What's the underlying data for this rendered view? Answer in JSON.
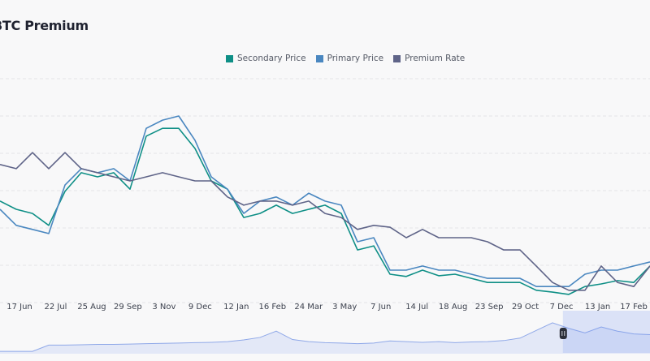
{
  "chart_data": {
    "type": "line",
    "title": "BTC Premium",
    "xlabel": "",
    "ylabel": "",
    "x_ticks": [
      "17 Jun",
      "22 Jul",
      "25 Aug",
      "29 Sep",
      "3 Nov",
      "9 Dec",
      "12 Jan",
      "16 Feb",
      "24 Mar",
      "3 May",
      "7 Jun",
      "14 Jul",
      "18 Aug",
      "23 Sep",
      "29 Oct",
      "7 Dec",
      "13 Jan",
      "17 Feb"
    ],
    "grid": true,
    "legend_position": "top",
    "ylim": [
      0,
      6
    ],
    "series": [
      {
        "name": "Secondary Price",
        "color": "#0e8f86",
        "values": [
          2.72,
          2.5,
          2.39,
          2.07,
          2.98,
          3.48,
          3.37,
          3.48,
          3.04,
          4.46,
          4.67,
          4.67,
          4.13,
          3.26,
          3.04,
          2.28,
          2.39,
          2.61,
          2.39,
          2.5,
          2.61,
          2.39,
          1.41,
          1.52,
          0.76,
          0.7,
          0.87,
          0.72,
          0.76,
          0.65,
          0.54,
          0.54,
          0.54,
          0.33,
          0.28,
          0.22,
          0.43,
          0.5,
          0.59,
          0.54,
          0.98
        ]
      },
      {
        "name": "Primary Price",
        "color": "#4a87c0",
        "values": [
          2.5,
          2.07,
          1.96,
          1.85,
          3.15,
          3.59,
          3.48,
          3.59,
          3.26,
          4.67,
          4.89,
          5.0,
          4.35,
          3.37,
          3.04,
          2.39,
          2.72,
          2.83,
          2.61,
          2.93,
          2.72,
          2.61,
          1.63,
          1.74,
          0.87,
          0.87,
          0.98,
          0.87,
          0.87,
          0.76,
          0.65,
          0.65,
          0.65,
          0.43,
          0.43,
          0.43,
          0.76,
          0.87,
          0.87,
          0.98,
          1.09
        ]
      },
      {
        "name": "Premium Rate",
        "color": "#5f6488",
        "values": [
          3.7,
          3.59,
          4.02,
          3.59,
          4.02,
          3.59,
          3.48,
          3.37,
          3.26,
          3.37,
          3.48,
          3.37,
          3.26,
          3.26,
          2.83,
          2.61,
          2.72,
          2.72,
          2.61,
          2.72,
          2.39,
          2.28,
          1.96,
          2.07,
          2.02,
          1.74,
          1.96,
          1.74,
          1.74,
          1.74,
          1.63,
          1.41,
          1.41,
          0.98,
          0.54,
          0.33,
          0.33,
          0.98,
          0.54,
          0.43,
          0.98
        ]
      }
    ],
    "navigator": {
      "color": "#8fa8e8",
      "values": [
        0.02,
        0.02,
        0.02,
        0.2,
        0.2,
        0.21,
        0.22,
        0.22,
        0.23,
        0.24,
        0.25,
        0.26,
        0.27,
        0.28,
        0.3,
        0.35,
        0.42,
        0.6,
        0.36,
        0.3,
        0.27,
        0.26,
        0.24,
        0.26,
        0.32,
        0.3,
        0.28,
        0.3,
        0.27,
        0.29,
        0.3,
        0.33,
        0.4,
        0.62,
        0.84,
        0.68,
        0.55,
        0.72,
        0.6,
        0.52,
        0.5
      ],
      "selected_range": [
        0.866,
        1.0
      ]
    }
  }
}
